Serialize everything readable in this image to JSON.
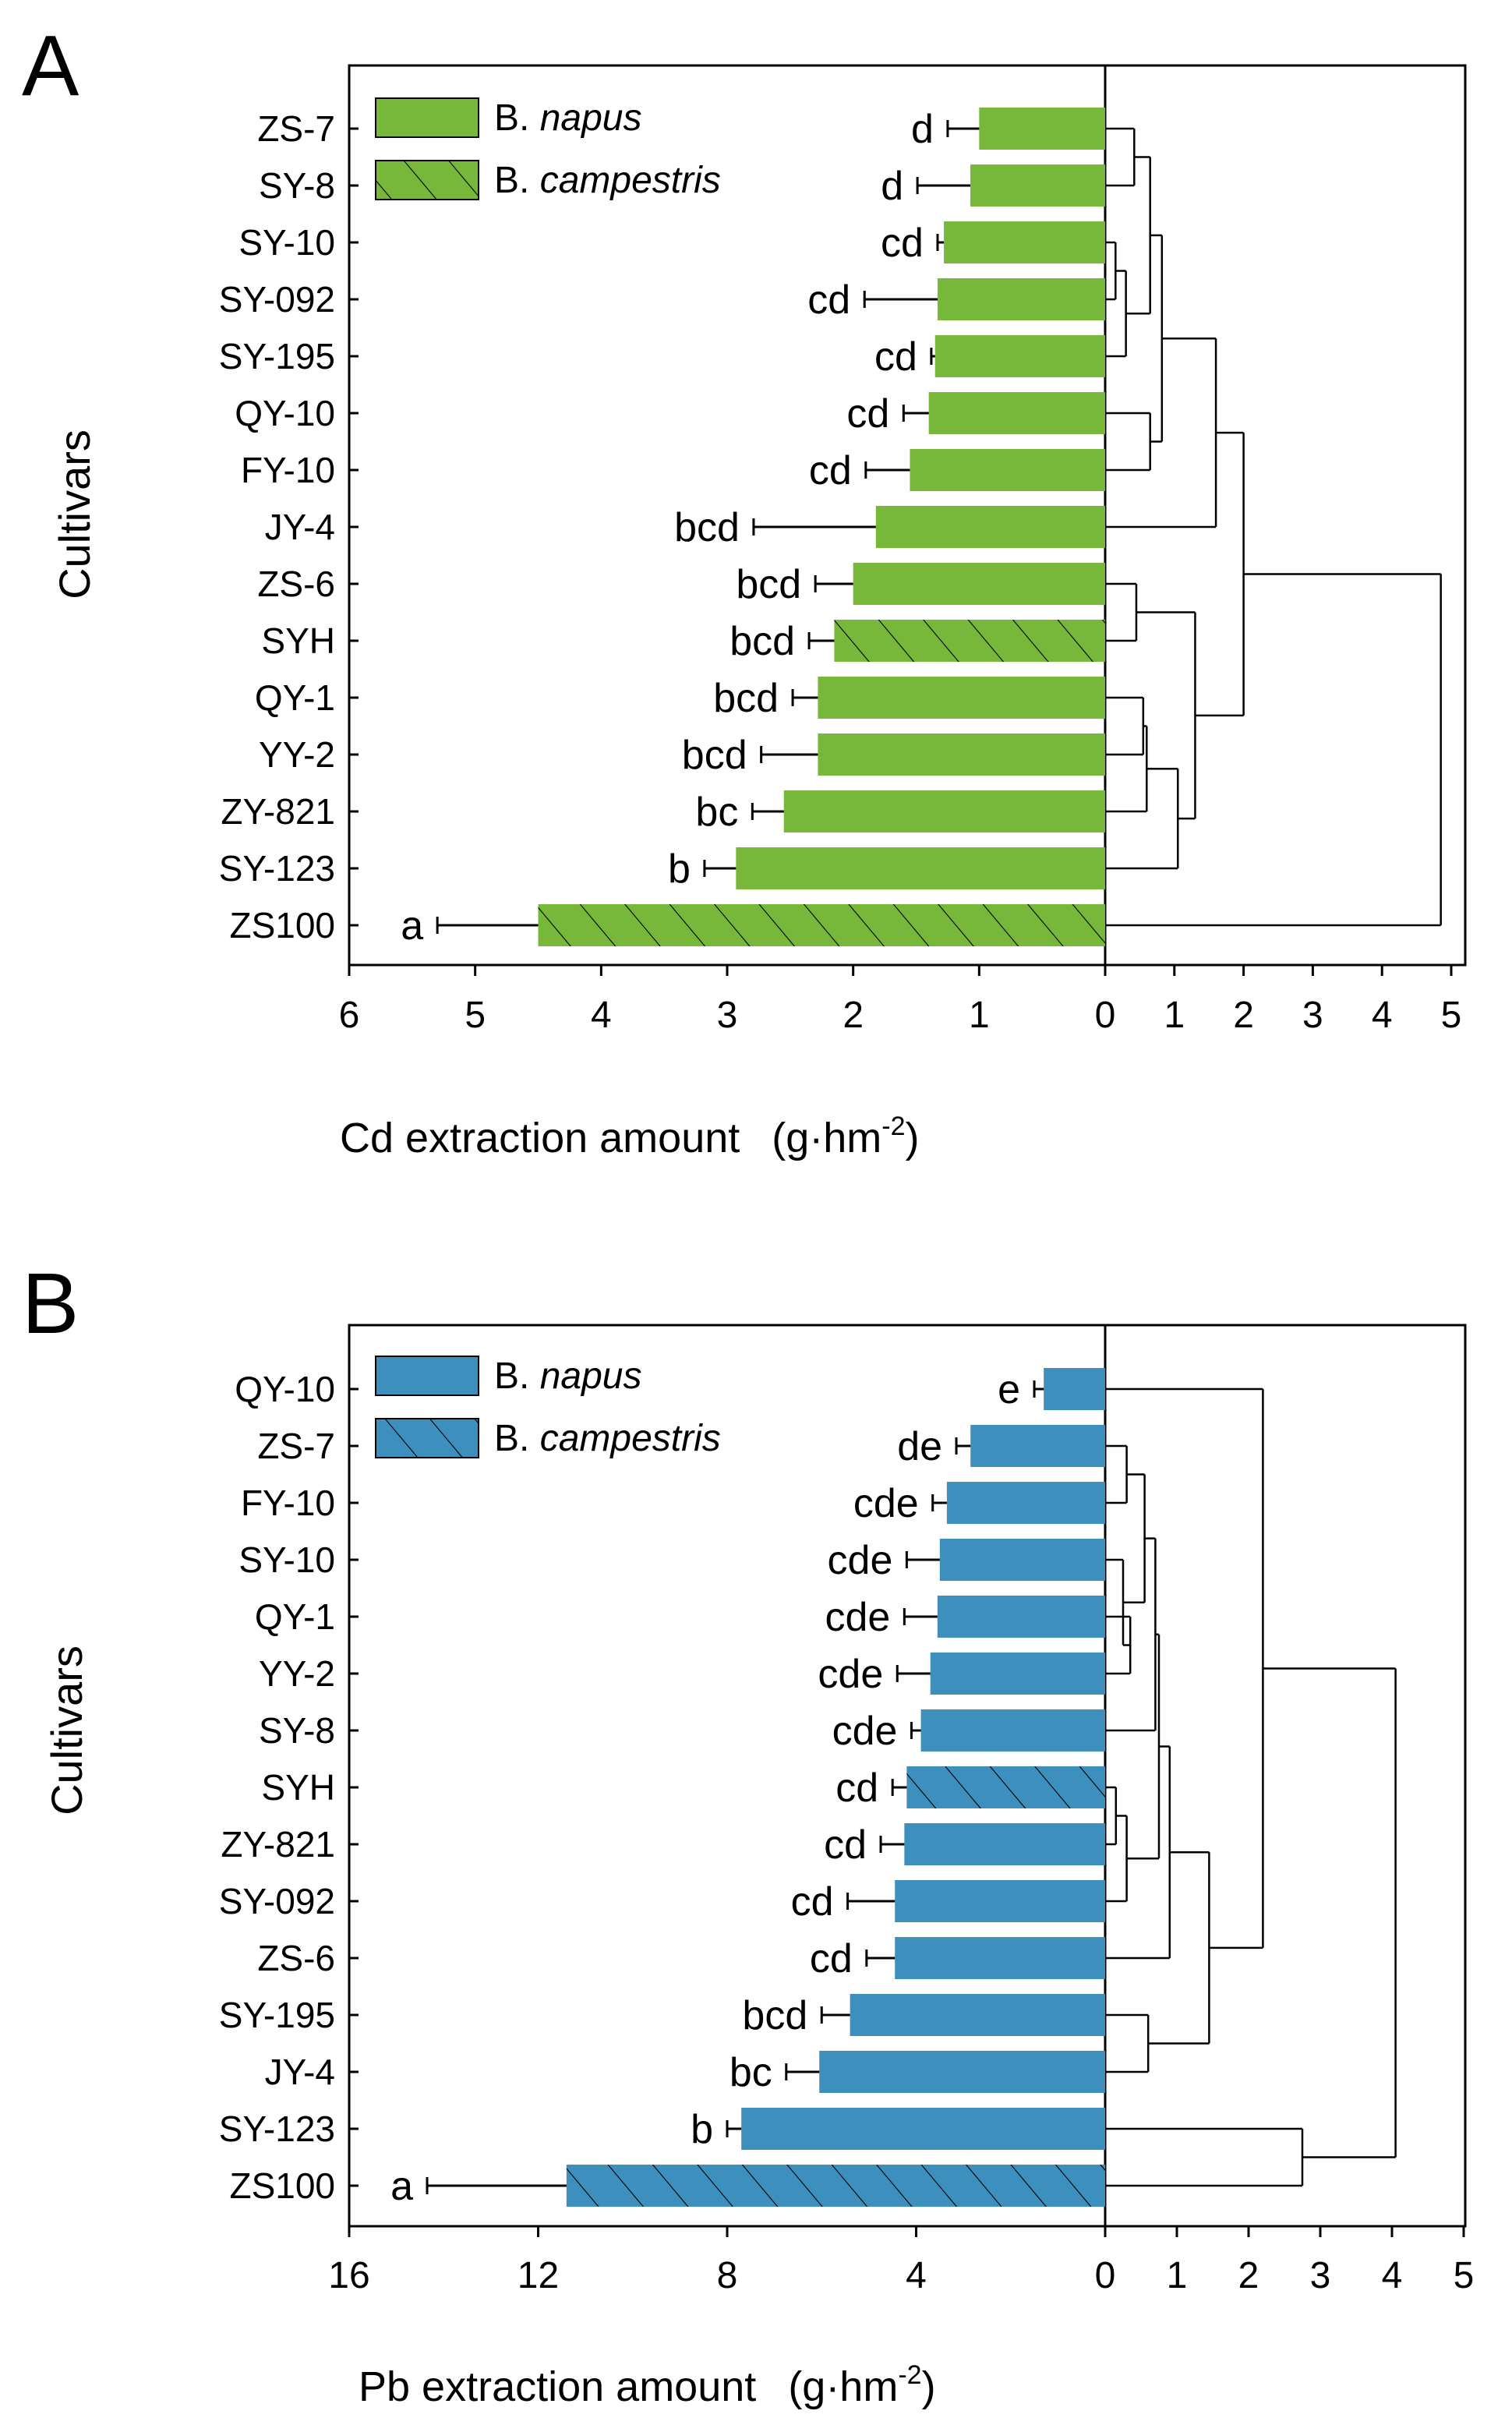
{
  "chart_data": [
    {
      "type": "bar",
      "panel_label": "A",
      "orientation": "horizontal",
      "ylabel": "Cultivars",
      "xlabel": "Cd extraction amount",
      "xlabel_unit": "(g·hm",
      "xlabel_unit_sup": "-2",
      "xlabel_unit_close": ")",
      "xlim": [
        6,
        0
      ],
      "xticks": [
        6,
        5,
        4,
        3,
        2,
        1,
        0
      ],
      "dendro_ticks": [
        1,
        2,
        3,
        4,
        5
      ],
      "dendro_max": 5,
      "bar_color": "#77b83a",
      "legend": [
        {
          "label_prefix": "B. ",
          "label_italic": "napus",
          "hatched": false
        },
        {
          "label_prefix": "B. ",
          "label_italic": "campestris",
          "hatched": true
        }
      ],
      "categories": [
        "ZS-7",
        "SY-8",
        "SY-10",
        "SY-092",
        "SY-195",
        "QY-10",
        "FY-10",
        "JY-4",
        "ZS-6",
        "SYH",
        "QY-1",
        "YY-2",
        "ZY-821",
        "SY-123",
        "ZS100"
      ],
      "values": [
        1.0,
        1.07,
        1.28,
        1.33,
        1.35,
        1.4,
        1.55,
        1.82,
        2.0,
        2.15,
        2.28,
        2.28,
        2.55,
        2.93,
        4.5
      ],
      "errors": [
        0.25,
        0.42,
        0.05,
        0.58,
        0.03,
        0.2,
        0.35,
        0.97,
        0.3,
        0.2,
        0.2,
        0.45,
        0.25,
        0.25,
        0.8
      ],
      "hatched": [
        false,
        false,
        false,
        false,
        false,
        false,
        false,
        false,
        false,
        true,
        false,
        false,
        false,
        false,
        true
      ],
      "significance": [
        "d",
        "d",
        "cd",
        "cd",
        "cd",
        "cd",
        "cd",
        "bcd",
        "bcd",
        "bcd",
        "bcd",
        "bcd",
        "bc",
        "b",
        "a"
      ],
      "dendrogram": {
        "leaves": [
          "ZS-7",
          "SY-8",
          "SY-10",
          "SY-092",
          "SY-195",
          "QY-10",
          "FY-10",
          "JY-4",
          "ZS-6",
          "SYH",
          "QY-1",
          "YY-2",
          "ZY-821",
          "SY-123",
          "ZS100"
        ],
        "merges": [
          [
            2,
            3,
            0.15
          ],
          [
            15,
            4,
            0.3
          ],
          [
            0,
            1,
            0.42
          ],
          [
            5,
            6,
            0.65
          ],
          [
            17,
            16,
            0.65
          ],
          [
            19,
            18,
            0.82
          ],
          [
            20,
            7,
            1.6
          ],
          [
            8,
            9,
            0.45
          ],
          [
            10,
            11,
            0.55
          ],
          [
            23,
            12,
            0.6
          ],
          [
            24,
            13,
            1.05
          ],
          [
            22,
            25,
            1.3
          ],
          [
            21,
            26,
            2.0
          ],
          [
            27,
            14,
            4.85
          ]
        ]
      }
    },
    {
      "type": "bar",
      "panel_label": "B",
      "orientation": "horizontal",
      "ylabel": "Cultivars",
      "xlabel": "Pb extraction amount",
      "xlabel_unit": "(g·hm",
      "xlabel_unit_sup": "-2",
      "xlabel_unit_close": ")",
      "xlim": [
        16,
        0
      ],
      "xticks": [
        16,
        12,
        8,
        4,
        0
      ],
      "dendro_ticks": [
        1,
        2,
        3,
        4,
        5
      ],
      "dendro_max": 5,
      "bar_color": "#3d8fbd",
      "legend": [
        {
          "label_prefix": "B. ",
          "label_italic": "napus",
          "hatched": false
        },
        {
          "label_prefix": "B. ",
          "label_italic": "campestris",
          "hatched": true
        }
      ],
      "categories": [
        "QY-10",
        "ZS-7",
        "FY-10",
        "SY-10",
        "QY-1",
        "YY-2",
        "SY-8",
        "SYH",
        "ZY-821",
        "SY-092",
        "ZS-6",
        "SY-195",
        "JY-4",
        "SY-123",
        "ZS100"
      ],
      "values": [
        1.3,
        2.85,
        3.35,
        3.5,
        3.55,
        3.7,
        3.9,
        4.2,
        4.25,
        4.45,
        4.45,
        5.4,
        6.05,
        7.7,
        11.4
      ],
      "errors": [
        0.2,
        0.3,
        0.3,
        0.7,
        0.7,
        0.7,
        0.2,
        0.3,
        0.5,
        1.0,
        0.6,
        0.6,
        0.7,
        0.3,
        2.95
      ],
      "hatched": [
        false,
        false,
        false,
        false,
        false,
        false,
        false,
        true,
        false,
        false,
        false,
        false,
        false,
        false,
        true
      ],
      "significance": [
        "e",
        "de",
        "cde",
        "cde",
        "cde",
        "cde",
        "cde",
        "cd",
        "cd",
        "cd",
        "cd",
        "bcd",
        "bc",
        "b",
        "a"
      ],
      "dendrogram": {
        "leaves": [
          "QY-10",
          "ZS-7",
          "FY-10",
          "SY-10",
          "QY-1",
          "YY-2",
          "SY-8",
          "SYH",
          "ZY-821",
          "SY-092",
          "ZS-6",
          "SY-195",
          "JY-4",
          "SY-123",
          "ZS100"
        ],
        "merges": [
          [
            4,
            5,
            0.35
          ],
          [
            3,
            15,
            0.25
          ],
          [
            1,
            2,
            0.3
          ],
          [
            17,
            16,
            0.55
          ],
          [
            18,
            6,
            0.7
          ],
          [
            7,
            8,
            0.15
          ],
          [
            20,
            9,
            0.3
          ],
          [
            19,
            21,
            0.75
          ],
          [
            22,
            10,
            0.9
          ],
          [
            11,
            12,
            0.6
          ],
          [
            23,
            24,
            1.45
          ],
          [
            0,
            25,
            2.2
          ],
          [
            13,
            14,
            2.75
          ],
          [
            26,
            27,
            4.05
          ]
        ]
      }
    }
  ]
}
